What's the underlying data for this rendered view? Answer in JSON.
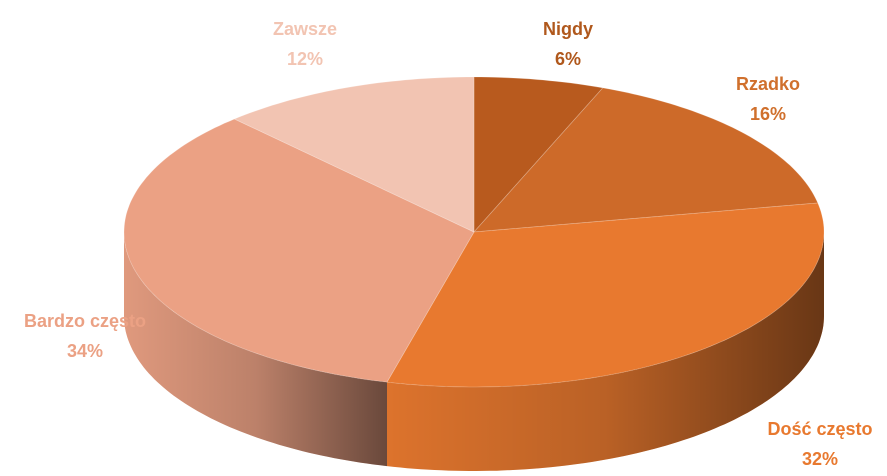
{
  "chart_data": {
    "type": "pie3d",
    "categories": [
      "Nigdy",
      "Rzadko",
      "Dość często",
      "Bardzo często",
      "Zawsze"
    ],
    "values": [
      6,
      16,
      32,
      34,
      12
    ],
    "value_labels": [
      "6%",
      "16%",
      "32%",
      "34%",
      "12%"
    ],
    "colors": [
      "#b85a1e",
      "#cd6a29",
      "#e8792f",
      "#eba184",
      "#f2c4b2"
    ],
    "label_colors": [
      "#b0581c",
      "#d0702d",
      "#e8792f",
      "#eba184",
      "#f2c4b2"
    ]
  }
}
